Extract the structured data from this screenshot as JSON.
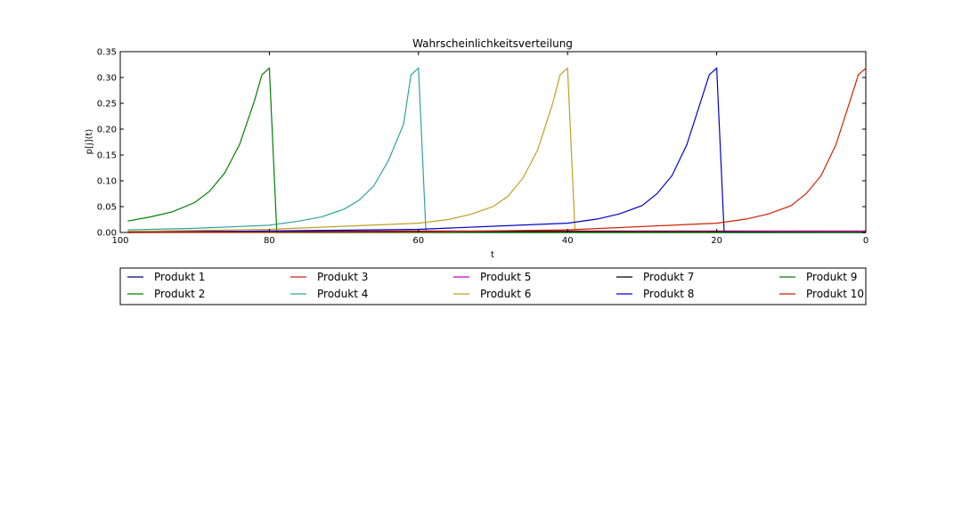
{
  "chart_data": {
    "type": "line",
    "title": "Wahrscheinlichkeitsverteilung",
    "xlabel": "t",
    "ylabel": "p[j](t)",
    "xlim": [
      100,
      0
    ],
    "ylim": [
      0,
      0.35
    ],
    "x_reversed": true,
    "xticks": [
      "100",
      "80",
      "60",
      "40",
      "20",
      "0"
    ],
    "xtick_values": [
      100,
      80,
      60,
      40,
      20,
      0
    ],
    "yticks": [
      "0.00",
      "0.05",
      "0.10",
      "0.15",
      "0.20",
      "0.25",
      "0.30",
      "0.35"
    ],
    "ytick_values": [
      0,
      0.05,
      0.1,
      0.15,
      0.2,
      0.25,
      0.3,
      0.35
    ],
    "grid": false,
    "legend_position": "below plot",
    "series": [
      {
        "name": "Produkt 1",
        "color": "#00007f",
        "x": [
          99,
          80,
          79.5,
          0
        ],
        "y": [
          0.001,
          0.001,
          0.001,
          0.001
        ]
      },
      {
        "name": "Produkt 2",
        "color": "#007f00",
        "x": [
          99,
          96,
          93,
          90,
          88,
          86,
          84,
          82,
          81,
          80,
          79,
          0
        ],
        "y": [
          0.022,
          0.03,
          0.04,
          0.058,
          0.08,
          0.115,
          0.17,
          0.255,
          0.305,
          0.318,
          0.0,
          0.0
        ]
      },
      {
        "name": "Produkt 3",
        "color": "#cc2222",
        "x": [
          99,
          60,
          40,
          20,
          0
        ],
        "y": [
          0.002,
          0.003,
          0.003,
          0.003,
          0.003
        ]
      },
      {
        "name": "Produkt 4",
        "color": "#33a0a0",
        "x": [
          99,
          90,
          80,
          76,
          73,
          70,
          68,
          66,
          64,
          62,
          61,
          60,
          59,
          0
        ],
        "y": [
          0.005,
          0.008,
          0.014,
          0.022,
          0.03,
          0.045,
          0.062,
          0.09,
          0.14,
          0.21,
          0.305,
          0.318,
          0.0,
          0.0
        ]
      },
      {
        "name": "Produkt 5",
        "color": "#bf00bf",
        "x": [
          99,
          60,
          40,
          20,
          0
        ],
        "y": [
          0.001,
          0.002,
          0.002,
          0.002,
          0.002
        ]
      },
      {
        "name": "Produkt 6",
        "color": "#bfa020",
        "x": [
          99,
          80,
          60,
          56,
          53,
          50,
          48,
          46,
          44,
          42,
          41,
          40,
          39,
          0
        ],
        "y": [
          0.002,
          0.006,
          0.018,
          0.025,
          0.035,
          0.05,
          0.07,
          0.105,
          0.16,
          0.25,
          0.305,
          0.318,
          0.0,
          0.0
        ]
      },
      {
        "name": "Produkt 7",
        "color": "#000000",
        "x": [
          99,
          60,
          20,
          0
        ],
        "y": [
          0.0,
          0.002,
          0.001,
          0.0
        ]
      },
      {
        "name": "Produkt 8",
        "color": "#0000cc",
        "x": [
          99,
          60,
          40,
          36,
          33,
          30,
          28,
          26,
          24,
          22,
          21,
          20,
          19,
          0
        ],
        "y": [
          0.0,
          0.006,
          0.018,
          0.026,
          0.036,
          0.052,
          0.075,
          0.11,
          0.17,
          0.26,
          0.305,
          0.318,
          0.0,
          0.0
        ]
      },
      {
        "name": "Produkt 9",
        "color": "#117711",
        "x": [
          99,
          40,
          0
        ],
        "y": [
          0.0,
          0.0,
          0.0
        ]
      },
      {
        "name": "Produkt 10",
        "color": "#cc2200",
        "x": [
          99,
          60,
          40,
          20,
          16,
          13,
          10,
          8,
          6,
          4,
          2,
          1,
          0
        ],
        "y": [
          0.0,
          0.001,
          0.005,
          0.018,
          0.026,
          0.036,
          0.052,
          0.075,
          0.11,
          0.17,
          0.26,
          0.305,
          0.318
        ]
      }
    ]
  }
}
